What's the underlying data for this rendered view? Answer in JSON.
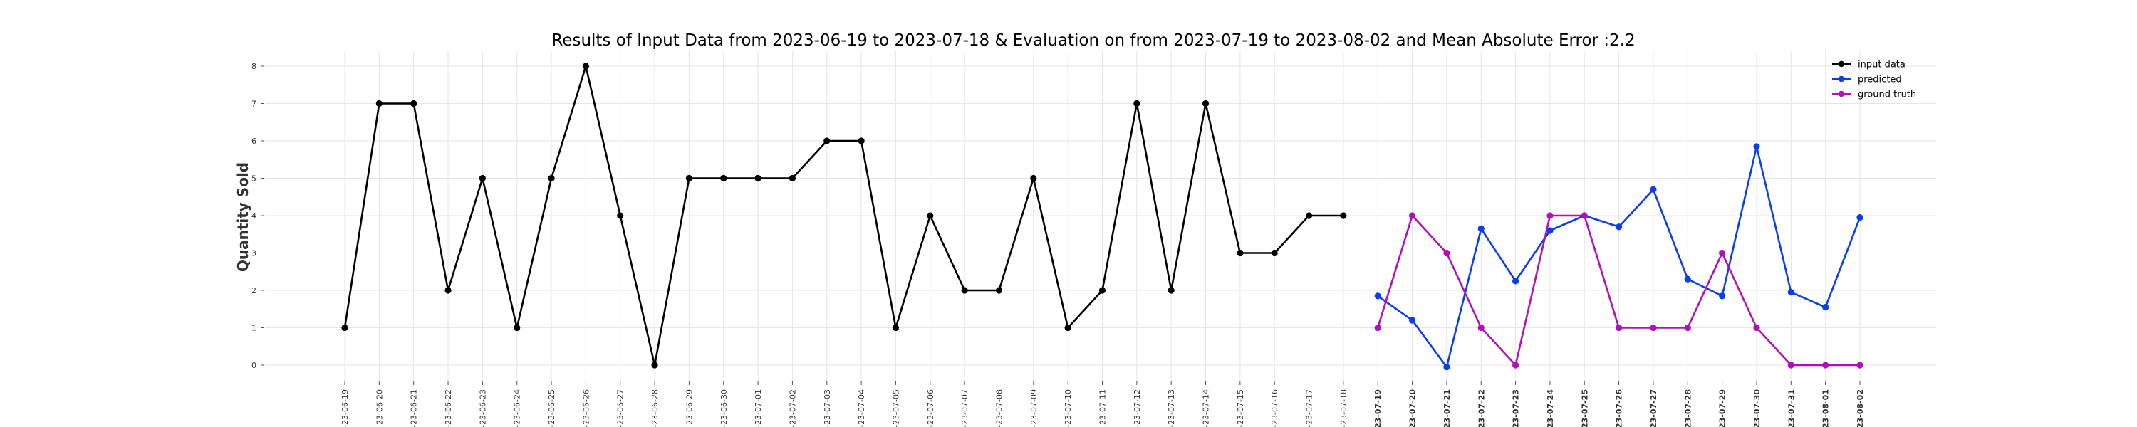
{
  "chart_data": {
    "type": "line",
    "title": "Results of Input Data from 2023-06-19 to 2023-07-18 & Evaluation on from 2023-07-19 to 2023-08-02 and Mean Absolute Error  :2.2",
    "xlabel": "",
    "ylabel": "Quantity Sold",
    "ylim": [
      -0.3,
      8.4
    ],
    "yticks": [
      0,
      1,
      2,
      3,
      4,
      5,
      6,
      7,
      8
    ],
    "grid": true,
    "legend_position": "top-right",
    "categories": [
      "2023-06-19",
      "2023-06-20",
      "2023-06-21",
      "2023-06-22",
      "2023-06-23",
      "2023-06-24",
      "2023-06-25",
      "2023-06-26",
      "2023-06-27",
      "2023-06-28",
      "2023-06-29",
      "2023-06-30",
      "2023-07-01",
      "2023-07-02",
      "2023-07-03",
      "2023-07-04",
      "2023-07-05",
      "2023-07-06",
      "2023-07-07",
      "2023-07-08",
      "2023-07-09",
      "2023-07-10",
      "2023-07-11",
      "2023-07-12",
      "2023-07-13",
      "2023-07-14",
      "2023-07-15",
      "2023-07-16",
      "2023-07-17",
      "2023-07-18",
      "2023-07-19",
      "2023-07-20",
      "2023-07-21",
      "2023-07-22",
      "2023-07-23",
      "2023-07-24",
      "2023-07-25",
      "2023-07-26",
      "2023-07-27",
      "2023-07-28",
      "2023-07-29",
      "2023-07-30",
      "2023-07-31",
      "2023-08-01",
      "2023-08-02"
    ],
    "tick_labels": [
      "-23-06-19",
      "-23-06-20",
      "-23-06-21",
      "-23-06-22",
      "-23-06-23",
      "-23-06-24",
      "-23-06-25",
      "-23-06-26",
      "-23-06-27",
      "-23-06-28",
      "-23-06-29",
      "-23-06-30",
      "-23-07-01",
      "-23-07-02",
      "-23-07-03",
      "-23-07-04",
      "-23-07-05",
      "-23-07-06",
      "-23-07-07",
      "-23-07-08",
      "-23-07-09",
      "-23-07-10",
      "-23-07-11",
      "-23-07-12",
      "-23-07-13",
      "-23-07-14",
      "-23-07-15",
      "-23-07-16",
      "-23-07-17",
      "-23-07-18",
      "-23-07-19",
      "-23-07-20",
      "-23-07-21",
      "-23-07-22",
      "-23-07-23",
      "-23-07-24",
      "-23-07-25",
      "-23-07-26",
      "-23-07-27",
      "-23-07-28",
      "-23-07-29",
      "-23-07-30",
      "-23-07-31",
      "-23-08-01",
      "-23-08-02"
    ],
    "series": [
      {
        "name": "input data",
        "color": "#000000",
        "x": [
          "2023-06-19",
          "2023-06-20",
          "2023-06-21",
          "2023-06-22",
          "2023-06-23",
          "2023-06-24",
          "2023-06-25",
          "2023-06-26",
          "2023-06-27",
          "2023-06-28",
          "2023-06-29",
          "2023-06-30",
          "2023-07-01",
          "2023-07-02",
          "2023-07-03",
          "2023-07-04",
          "2023-07-05",
          "2023-07-06",
          "2023-07-07",
          "2023-07-08",
          "2023-07-09",
          "2023-07-10",
          "2023-07-11",
          "2023-07-12",
          "2023-07-13",
          "2023-07-14",
          "2023-07-15",
          "2023-07-16",
          "2023-07-17",
          "2023-07-18"
        ],
        "values": [
          1,
          7,
          7,
          2,
          5,
          1,
          5,
          8,
          4,
          0,
          5,
          5,
          5,
          5,
          6,
          6,
          1,
          4,
          2,
          2,
          5,
          1,
          2,
          7,
          2,
          7,
          3,
          3,
          4,
          4
        ]
      },
      {
        "name": "predicted",
        "color": "#0a3cf0",
        "x": [
          "2023-07-19",
          "2023-07-20",
          "2023-07-21",
          "2023-07-22",
          "2023-07-23",
          "2023-07-24",
          "2023-07-25",
          "2023-07-26",
          "2023-07-27",
          "2023-07-28",
          "2023-07-29",
          "2023-07-30",
          "2023-07-31",
          "2023-08-01",
          "2023-08-02"
        ],
        "values": [
          1.85,
          1.2,
          -0.05,
          3.65,
          2.25,
          3.6,
          4.0,
          3.7,
          4.7,
          2.3,
          1.85,
          5.85,
          1.95,
          1.55,
          3.95
        ]
      },
      {
        "name": "ground truth",
        "color": "#b010b8",
        "x": [
          "2023-07-19",
          "2023-07-20",
          "2023-07-21",
          "2023-07-22",
          "2023-07-23",
          "2023-07-24",
          "2023-07-25",
          "2023-07-26",
          "2023-07-27",
          "2023-07-28",
          "2023-07-29",
          "2023-07-30",
          "2023-07-31",
          "2023-08-01",
          "2023-08-02"
        ],
        "values": [
          1,
          4,
          3,
          1,
          0,
          4,
          4,
          1,
          1,
          1,
          3,
          1,
          0,
          0,
          0
        ]
      }
    ]
  }
}
